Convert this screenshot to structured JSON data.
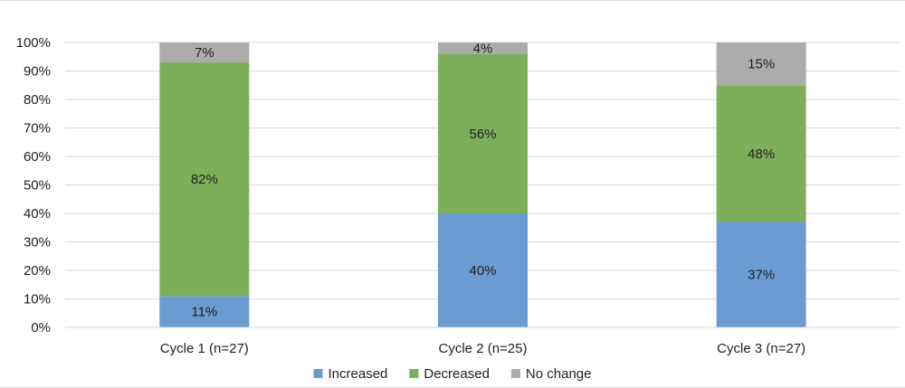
{
  "chart_data": {
    "type": "bar",
    "stacked": true,
    "percent": true,
    "categories": [
      "Cycle 1 (n=27)",
      "Cycle 2 (n=25)",
      "Cycle 3 (n=27)"
    ],
    "series": [
      {
        "name": "Increased",
        "values": [
          11,
          40,
          37
        ],
        "color": "#6a9bd1"
      },
      {
        "name": "Decreased",
        "values": [
          82,
          56,
          48
        ],
        "color": "#7daf5a"
      },
      {
        "name": "No change",
        "values": [
          7,
          4,
          15
        ],
        "color": "#aeabab"
      }
    ],
    "data_labels": [
      [
        "11%",
        "40%",
        "37%"
      ],
      [
        "82%",
        "56%",
        "48%"
      ],
      [
        "7%",
        "4%",
        "15%"
      ]
    ],
    "yticks": [
      "0%",
      "10%",
      "20%",
      "30%",
      "40%",
      "50%",
      "60%",
      "70%",
      "80%",
      "90%",
      "100%"
    ],
    "ylim": [
      0,
      100
    ],
    "grid": true,
    "legend_position": "bottom"
  }
}
